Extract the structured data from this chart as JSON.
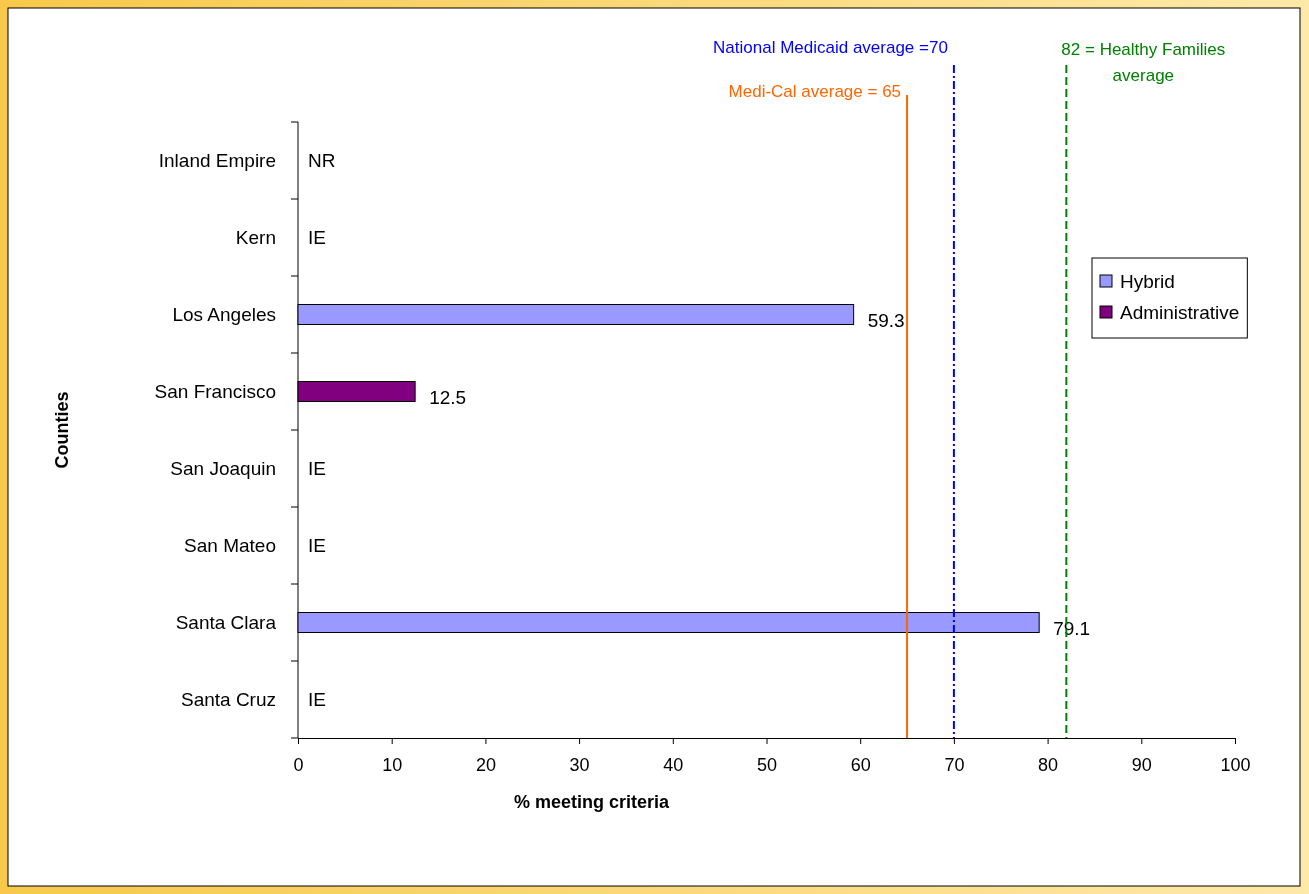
{
  "chart_data": {
    "type": "bar",
    "orientation": "horizontal",
    "xlabel": "% meeting criteria",
    "ylabel": "Counties",
    "categories": [
      "Inland Empire",
      "Kern",
      "Los Angeles",
      "San Francisco",
      "San Joaquin",
      "San Mateo",
      "Santa Clara",
      "Santa Cruz"
    ],
    "series": [
      {
        "name": "Hybrid",
        "color": "#9999ff",
        "values": [
          null,
          null,
          59.3,
          null,
          null,
          null,
          79.1,
          null
        ],
        "value_labels": [
          "NR",
          "IE",
          "59.3",
          null,
          "IE",
          "IE",
          "79.1",
          "IE"
        ]
      },
      {
        "name": "Administrative",
        "color": "#800080",
        "values": [
          null,
          null,
          null,
          12.5,
          null,
          null,
          null,
          null
        ],
        "value_labels": [
          null,
          null,
          null,
          "12.5",
          null,
          null,
          null,
          null
        ]
      }
    ],
    "xlim": [
      0,
      100
    ],
    "xticks": [
      0,
      10,
      20,
      30,
      40,
      50,
      60,
      70,
      80,
      90,
      100
    ],
    "ref_lines": [
      {
        "axis": "x",
        "value": 65,
        "label": "Medi-Cal average = 65",
        "color": "#ff6600",
        "line_style": "solid"
      },
      {
        "axis": "x",
        "value": 70,
        "label": "National Medicaid average =70",
        "color": "#0000ff",
        "line_style": "dotted"
      },
      {
        "axis": "x",
        "value": 82,
        "label": "82 = Healthy Families average",
        "color": "#008000",
        "line_style": "dashed"
      }
    ],
    "legend": "right"
  }
}
